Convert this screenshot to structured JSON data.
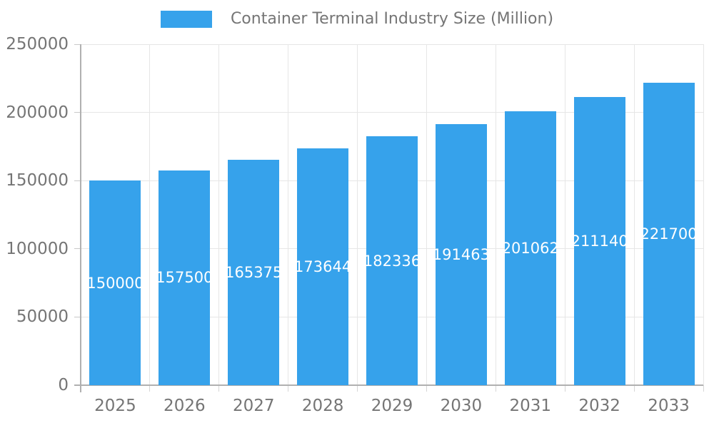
{
  "legend": {
    "label": "Container Terminal Industry Size (Million)"
  },
  "chart_data": {
    "type": "bar",
    "title": "Container Terminal Industry Size (Million)",
    "categories": [
      "2025",
      "2026",
      "2027",
      "2028",
      "2029",
      "2030",
      "2031",
      "2032",
      "2033"
    ],
    "values": [
      150000,
      157500,
      165375,
      173644,
      182336,
      191463,
      201062,
      211140,
      221700
    ],
    "series": [
      {
        "name": "Container Terminal Industry Size (Million)",
        "values": [
          150000,
          157500,
          165375,
          173644,
          182336,
          191463,
          201062,
          211140,
          221700
        ]
      }
    ],
    "xlabel": "",
    "ylabel": "",
    "ylim": [
      0,
      250000
    ],
    "ytick_labels": [
      "0",
      "50000",
      "100000",
      "150000",
      "200000",
      "250000"
    ],
    "grid": true,
    "legend_position": "top",
    "value_labels": "inside-center-white"
  },
  "colors": {
    "bar": "#36A2EB",
    "bar_value_text": "#ffffff",
    "axis_text": "#757575",
    "axis_line": "#b0b0b0",
    "gridline": "#e6e6e6",
    "tick": "#d6d6d6",
    "background": "#ffffff"
  }
}
